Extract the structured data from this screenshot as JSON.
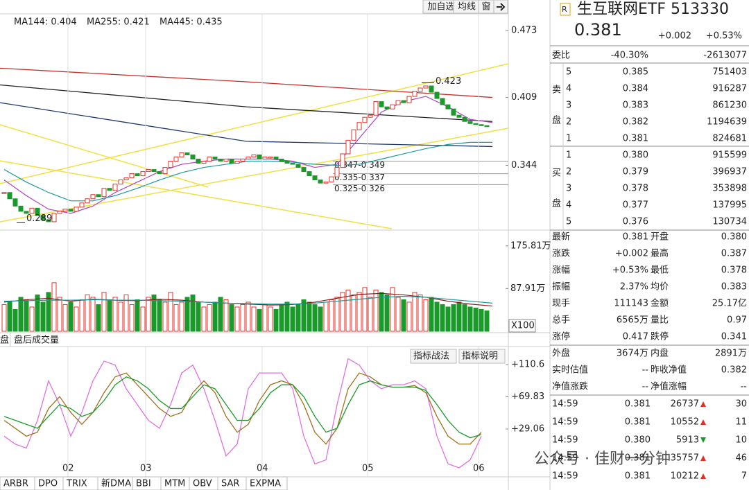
{
  "header": {
    "badge": "R",
    "title": "生互联网ETF 513330",
    "price": "0.381",
    "change": "+0.002",
    "pct": "+0.53%"
  },
  "toolbar": [
    "加自选",
    "均线",
    "窗"
  ],
  "ma_legend": [
    {
      "text": "MA144: 0.404",
      "color": "#222222"
    },
    {
      "text": "MA255: 0.421",
      "color": "#222222"
    },
    {
      "text": "MA445: 0.435",
      "color": "#e0302a"
    }
  ],
  "price_chart": {
    "type": "candlestick",
    "categories": [
      null,
      null,
      null,
      null,
      null,
      null,
      null,
      null,
      null,
      null,
      null,
      null,
      "02",
      null,
      null,
      null,
      null,
      null,
      null,
      null,
      null,
      null,
      null,
      null,
      null,
      null,
      "03",
      null,
      null,
      null,
      null,
      null,
      null,
      null,
      null,
      null,
      null,
      null,
      null,
      null,
      null,
      null,
      null,
      null,
      null,
      null,
      null,
      "04",
      null,
      null,
      null,
      null,
      null,
      null,
      null,
      null,
      null,
      null,
      null,
      null,
      null,
      null,
      null,
      null,
      null,
      null,
      "05",
      null,
      null,
      null,
      null,
      null,
      null,
      null,
      null,
      null,
      null,
      null,
      null,
      null,
      null,
      null,
      null,
      null,
      null,
      null,
      "06"
    ],
    "closes": [
      0.318,
      0.312,
      0.305,
      0.3,
      0.298,
      0.303,
      0.296,
      0.292,
      0.29,
      0.298,
      0.3,
      0.302,
      0.3,
      0.304,
      0.308,
      0.312,
      0.316,
      0.314,
      0.322,
      0.32,
      0.326,
      0.33,
      0.332,
      0.336,
      0.334,
      0.338,
      0.34,
      0.338,
      0.336,
      0.342,
      0.348,
      0.352,
      0.356,
      0.354,
      0.35,
      0.346,
      0.348,
      0.352,
      0.35,
      0.348,
      0.35,
      0.346,
      0.348,
      0.35,
      0.352,
      0.354,
      0.35,
      0.352,
      0.352,
      0.35,
      0.348,
      0.346,
      0.345,
      0.342,
      0.338,
      0.334,
      0.33,
      0.327,
      0.328,
      0.333,
      0.342,
      0.355,
      0.368,
      0.378,
      0.385,
      0.39,
      0.392,
      0.405,
      0.4,
      0.398,
      0.402,
      0.406,
      0.404,
      0.41,
      0.415,
      0.418,
      0.42,
      0.414,
      0.408,
      0.402,
      0.398,
      0.392,
      0.39,
      0.386,
      0.384,
      0.383,
      0.382,
      0.381
    ],
    "ylim": [
      0.282,
      0.489
    ],
    "yticks": [
      0.473,
      0.409,
      0.344
    ],
    "ma_short": [
      {
        "color": "#b040c0",
        "values": [
          0.33,
          0.315,
          0.302,
          0.298,
          0.305,
          0.318,
          0.328,
          0.338,
          0.345,
          0.348,
          0.35,
          0.35,
          0.35,
          0.348,
          0.342,
          0.345,
          0.37,
          0.395,
          0.405,
          0.41,
          0.4,
          0.388,
          0.385
        ]
      },
      {
        "color": "#1a9a9a",
        "values": [
          0.34,
          0.328,
          0.318,
          0.31,
          0.31,
          0.315,
          0.322,
          0.33,
          0.337,
          0.342,
          0.345,
          0.348,
          0.348,
          0.347,
          0.345,
          0.344,
          0.345,
          0.35,
          0.355,
          0.36,
          0.364,
          0.366,
          0.366
        ]
      }
    ],
    "ma_long": [
      {
        "color": "#222222",
        "values": [
          0.421,
          0.4,
          0.386
        ]
      },
      {
        "color": "#1f3a6a",
        "values": [
          0.404,
          0.367,
          0.362
        ]
      },
      {
        "color": "#c0302a",
        "values": [
          0.437,
          0.424,
          0.409
        ]
      }
    ],
    "high_label": "0.423",
    "high_value": 0.423,
    "low_label": "0.289",
    "low_value": 0.289,
    "zones": [
      {
        "label": "0.347-0.349",
        "value": 0.348
      },
      {
        "label": "0.335-0.337",
        "value": 0.336
      },
      {
        "label": "0.325-0.326",
        "value": 0.3255
      }
    ]
  },
  "volume_chart": {
    "type": "bar",
    "values": [
      55,
      60,
      45,
      70,
      65,
      50,
      75,
      60,
      80,
      100,
      70,
      55,
      60,
      50,
      65,
      75,
      70,
      55,
      80,
      65,
      70,
      60,
      75,
      55,
      65,
      50,
      70,
      75,
      65,
      60,
      80,
      55,
      60,
      70,
      75,
      60,
      50,
      55,
      60,
      70,
      65,
      55,
      50,
      55,
      60,
      50,
      45,
      55,
      50,
      45,
      55,
      60,
      50,
      55,
      65,
      60,
      55,
      50,
      60,
      65,
      70,
      80,
      85,
      75,
      80,
      90,
      70,
      85,
      80,
      75,
      90,
      70,
      65,
      60,
      80,
      75,
      65,
      70,
      60,
      55,
      50,
      55,
      60,
      55,
      50,
      48,
      45,
      42
    ],
    "ylim": [
      0,
      204
    ],
    "yticks": [
      {
        "value": 175.81,
        "label": "175.81万"
      },
      {
        "value": 87.91,
        "label": "87.91万"
      }
    ],
    "unit": "X100",
    "ma": [
      {
        "color": "#8a1a1a",
        "values": [
          60,
          65,
          68,
          62,
          66,
          64,
          63,
          66,
          64,
          60,
          58,
          56,
          54,
          55,
          60,
          68,
          76,
          78,
          75,
          70,
          62,
          56,
          52
        ]
      },
      {
        "color": "#1a9a9a",
        "values": [
          62,
          63,
          64,
          64,
          65,
          64,
          64,
          63,
          62,
          60,
          58,
          57,
          56,
          56,
          58,
          62,
          66,
          70,
          72,
          70,
          66,
          62,
          58
        ]
      }
    ]
  },
  "volume_tabs": [
    "盘",
    "盘后成交量"
  ],
  "indicator_chart": {
    "type": "line",
    "ylim": [
      -28.8,
      133.4
    ],
    "yticks": [
      {
        "value": 110.6,
        "label": "+110.6"
      },
      {
        "value": 69.83,
        "label": "+69.83"
      },
      {
        "value": 29.06,
        "label": "+29.06"
      }
    ],
    "series": [
      {
        "color": "#e070e0",
        "values": [
          20,
          10,
          5,
          40,
          90,
          60,
          20,
          50,
          90,
          115,
          110,
          80,
          60,
          40,
          30,
          60,
          100,
          110,
          80,
          40,
          -5,
          10,
          80,
          100,
          100,
          100,
          80,
          20,
          -15,
          -10,
          60,
          118,
          110,
          90,
          80,
          85,
          85,
          90,
          80,
          20,
          -15,
          -20,
          -10,
          20
        ]
      },
      {
        "color": "#a07020",
        "values": [
          40,
          30,
          20,
          25,
          55,
          70,
          50,
          35,
          50,
          75,
          95,
          100,
          85,
          70,
          55,
          45,
          50,
          75,
          90,
          75,
          45,
          25,
          35,
          65,
          85,
          90,
          85,
          60,
          25,
          10,
          30,
          80,
          100,
          95,
          85,
          82,
          82,
          84,
          75,
          45,
          20,
          10,
          10,
          25
        ]
      },
      {
        "color": "#1a9a2a",
        "values": [
          45,
          40,
          35,
          30,
          45,
          60,
          55,
          45,
          50,
          65,
          85,
          95,
          90,
          80,
          65,
          55,
          55,
          70,
          85,
          80,
          60,
          40,
          40,
          55,
          75,
          85,
          85,
          70,
          45,
          25,
          30,
          60,
          85,
          90,
          85,
          82,
          82,
          82,
          78,
          60,
          40,
          25,
          18,
          22
        ]
      }
    ],
    "buttons": [
      "指标战法",
      "指标说明"
    ]
  },
  "bottom_tabs": [
    "ARBR",
    "DPO",
    "TRIX",
    "新DMA",
    "BBI",
    "MTM",
    "OBV",
    "SAR",
    "EXPMA"
  ],
  "watermark": "公众号 · 佳财一分钟",
  "weibi": {
    "label": "委比",
    "pct": "-40.30%",
    "diff": "-2613077"
  },
  "sell": {
    "label": [
      "卖",
      "盘"
    ],
    "rows": [
      {
        "level": "5",
        "price": "0.385",
        "volume": "751403",
        "color": "#e0302a"
      },
      {
        "level": "4",
        "price": "0.384",
        "volume": "916287",
        "color": "#e0302a"
      },
      {
        "level": "3",
        "price": "0.383",
        "volume": "861230",
        "color": "#e0302a"
      },
      {
        "level": "2",
        "price": "0.382",
        "volume": "1194639",
        "color": "#e0302a"
      },
      {
        "level": "1",
        "price": "0.381",
        "volume": "824681",
        "color": "#e0302a"
      }
    ]
  },
  "buy": {
    "label": [
      "买",
      "盘"
    ],
    "rows": [
      {
        "level": "1",
        "price": "0.380",
        "volume": "915599",
        "color": "#e0302a"
      },
      {
        "level": "2",
        "price": "0.379",
        "volume": "396937",
        "color": "#222222"
      },
      {
        "level": "3",
        "price": "0.378",
        "volume": "353898",
        "color": "#1a9a2a"
      },
      {
        "level": "4",
        "price": "0.377",
        "volume": "137995",
        "color": "#1a9a2a"
      },
      {
        "level": "5",
        "price": "0.376",
        "volume": "130734",
        "color": "#1a9a2a"
      }
    ]
  },
  "stats": [
    {
      "cells": [
        "最新",
        "0.381",
        "开盘",
        "0.380"
      ],
      "colors": [
        "#e0302a",
        "#e0302a"
      ]
    },
    {
      "cells": [
        "涨跌",
        "+0.002",
        "最高",
        "0.387"
      ],
      "colors": [
        "#e0302a",
        "#e0302a"
      ]
    },
    {
      "cells": [
        "涨幅",
        "+0.53%",
        "最低",
        "0.378"
      ],
      "colors": [
        "#e0302a",
        "#1a9a2a"
      ]
    },
    {
      "cells": [
        "振幅",
        "2.37%",
        "均价",
        "0.383"
      ],
      "colors": [
        "#1a9a2a",
        "#e0302a"
      ]
    },
    {
      "cells": [
        "现手",
        "111143",
        "金额",
        "25.17亿"
      ],
      "colors": [
        "#1a9a2a",
        "#1a9a2a"
      ]
    },
    {
      "cells": [
        "总手",
        "6565万",
        "量比",
        "0.97"
      ],
      "colors": [
        "#1a9a2a",
        "#1a9a2a"
      ]
    },
    {
      "cells": [
        "涨停",
        "0.417",
        "跌停",
        "0.341"
      ],
      "colors": [
        "#e0302a",
        "#1a9a2a"
      ]
    }
  ],
  "outer": [
    {
      "cells": [
        "外盘",
        "3674万",
        "内盘",
        "2891万"
      ],
      "colors": [
        "#e0302a",
        "#1a9a2a"
      ]
    },
    {
      "cells": [
        "实时估值",
        "--",
        "昨收净值",
        "0.382"
      ],
      "colors": [
        "#222222",
        "#e0302a"
      ]
    },
    {
      "cells": [
        "净值涨跌",
        "--",
        "净值涨幅",
        "--"
      ],
      "colors": [
        "#222222",
        "#222222"
      ]
    }
  ],
  "ticks": [
    {
      "time": "14:59",
      "price": "0.381",
      "volume": "26737",
      "dir": "up",
      "count": "30"
    },
    {
      "time": "14:59",
      "price": "0.381",
      "volume": "10552",
      "dir": "up",
      "count": "11"
    },
    {
      "time": "14:59",
      "price": "0.380",
      "volume": "5913",
      "dir": "down",
      "count": "10"
    },
    {
      "time": "14:59",
      "price": "0.381",
      "volume": "35757",
      "dir": "up",
      "count": "46"
    },
    {
      "time": "14:59",
      "price": "0.381",
      "volume": "10212",
      "dir": "up",
      "count": "7"
    }
  ]
}
